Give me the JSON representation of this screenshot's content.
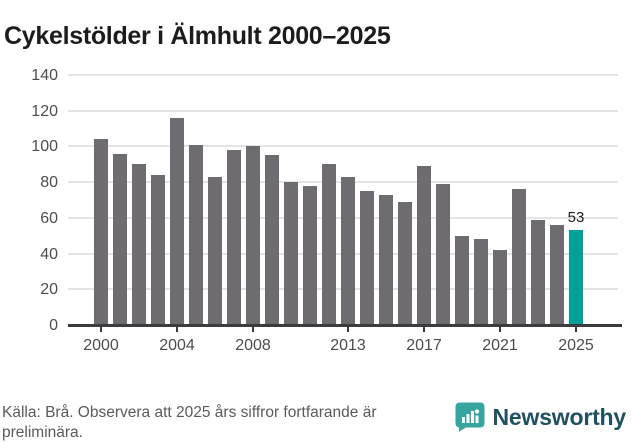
{
  "title": "Cykelstölder i Älmhult 2000–2025",
  "chart_data": {
    "type": "bar",
    "title": "Cykelstölder i Älmhult 2000–2025",
    "categories": [
      "2000",
      "2001",
      "2002",
      "2003",
      "2004",
      "2005",
      "2006",
      "2007",
      "2008",
      "2009",
      "2010",
      "2011",
      "2012",
      "2013",
      "2014",
      "2015",
      "2016",
      "2017",
      "2018",
      "2019",
      "2020",
      "2021",
      "2022",
      "2023",
      "2024",
      "2025"
    ],
    "values": [
      104,
      96,
      90,
      84,
      116,
      101,
      83,
      98,
      100,
      95,
      80,
      78,
      90,
      83,
      75,
      73,
      69,
      89,
      79,
      50,
      48,
      42,
      76,
      59,
      56,
      53
    ],
    "xlabel": "",
    "ylabel": "",
    "ylim": [
      0,
      140
    ],
    "yticks": [
      0,
      20,
      40,
      60,
      80,
      100,
      120,
      140
    ],
    "xtick_labels": [
      "2000",
      "2004",
      "2008",
      "2013",
      "2017",
      "2021",
      "2025"
    ],
    "grid": true,
    "legend_position": "none",
    "highlight": {
      "category": "2025",
      "value": 53,
      "label": "53"
    },
    "bar_color": "#6e6c71",
    "highlight_color": "#00a09a"
  },
  "annotation": {
    "last_value_label": "53"
  },
  "footer": {
    "source_text": "Källa: Brå. Observera att 2025 års siffror fortfarande är preliminära.",
    "brand": "Newsworthy"
  },
  "colors": {
    "bar": "#6e6c71",
    "highlight": "#00a09a",
    "grid": "#e4e4e4",
    "axis": "#3c3c3c",
    "axis_text": "#4d4d4d",
    "title_text": "#1c1c1c",
    "footer_text": "#5a5a5a",
    "logo_teal": "#36a5a0",
    "wordmark": "#1f5163"
  }
}
